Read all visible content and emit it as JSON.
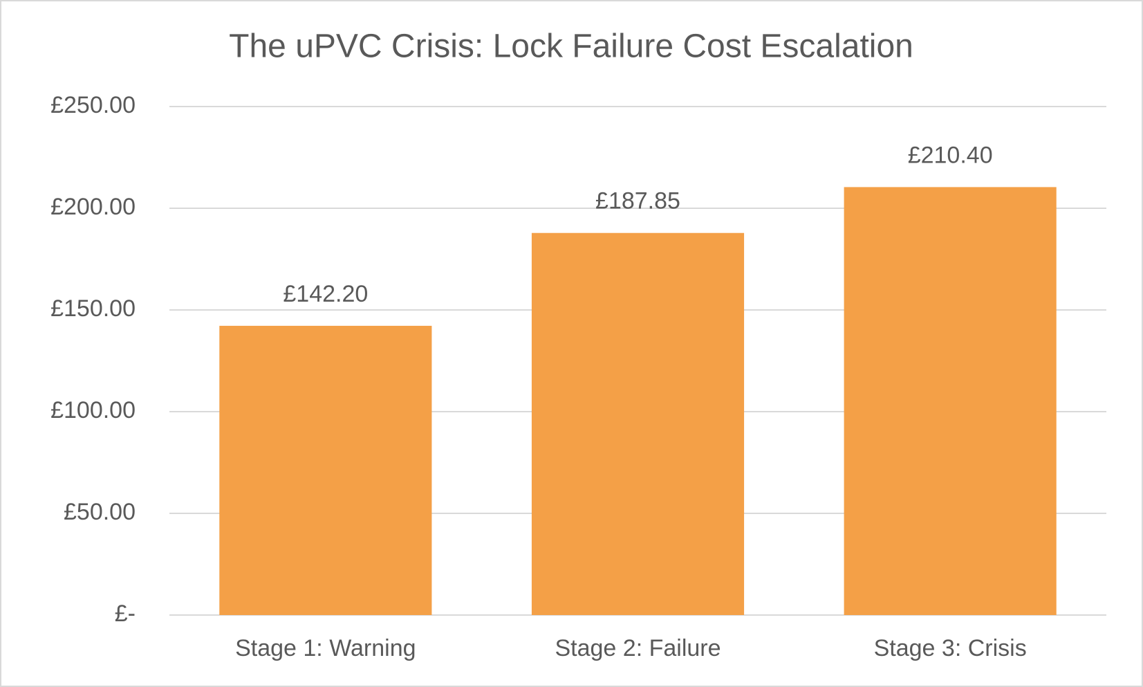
{
  "chart_data": {
    "type": "bar",
    "title": "The uPVC Crisis: Lock Failure Cost Escalation",
    "categories": [
      "Stage 1: Warning",
      "Stage 2: Failure",
      "Stage 3: Crisis"
    ],
    "values": [
      142.2,
      187.85,
      210.4
    ],
    "value_labels": [
      "£142.20",
      "£187.85",
      "£210.40"
    ],
    "color": "#f4a047",
    "ylim": [
      0,
      250
    ],
    "yticks": [
      {
        "value": 0,
        "label": "£-"
      },
      {
        "value": 50,
        "label": "£50.00"
      },
      {
        "value": 100,
        "label": "£100.00"
      },
      {
        "value": 150,
        "label": "£150.00"
      },
      {
        "value": 200,
        "label": "£200.00"
      },
      {
        "value": 250,
        "label": "£250.00"
      }
    ],
    "grid": true
  }
}
